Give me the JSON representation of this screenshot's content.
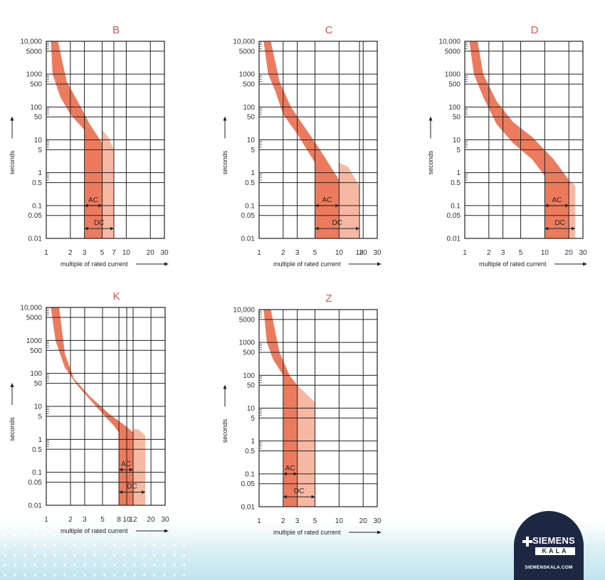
{
  "chart_data": [
    {
      "type": "area",
      "title": "B",
      "ylabel": "seconds",
      "xlabel": "multiple of rated current",
      "x_scale": "log",
      "y_scale": "log",
      "xlim": [
        1,
        30
      ],
      "ylim": [
        0.01,
        10000
      ],
      "x_ticks": [
        1,
        2,
        3,
        5,
        7,
        10,
        20,
        30
      ],
      "x_tick_labels": [
        "1",
        "2",
        "3",
        "5",
        "7",
        "10",
        "20",
        "30"
      ],
      "y_ticks": [
        0.01,
        0.05,
        0.1,
        0.5,
        1,
        5,
        10,
        50,
        100,
        500,
        1000,
        5000,
        10000
      ],
      "y_tick_labels": [
        "0.01",
        "0.05",
        "0.1",
        "0.5",
        "1",
        "5",
        "10",
        "50",
        "100",
        "500",
        "1000",
        "5000",
        "10,000"
      ],
      "inner_band": [
        [
          1.14,
          10000
        ],
        [
          1.2,
          1000
        ],
        [
          1.5,
          200
        ],
        [
          2.0,
          60
        ],
        [
          3.0,
          20
        ],
        [
          3.0,
          0.01
        ],
        [
          5.0,
          0.01
        ],
        [
          5.0,
          8
        ],
        [
          3.5,
          30
        ],
        [
          2.7,
          100
        ],
        [
          1.8,
          600
        ],
        [
          1.4,
          10000
        ]
      ],
      "outer_band": [
        [
          5.0,
          0.01
        ],
        [
          7.0,
          0.01
        ],
        [
          7.0,
          5
        ],
        [
          6.0,
          12
        ],
        [
          5.0,
          20
        ]
      ],
      "annotations": [
        {
          "label": "AC",
          "from": 3,
          "to": 5,
          "y": 0.1
        },
        {
          "label": "DC",
          "from": 3,
          "to": 7,
          "y": 0.02
        }
      ]
    },
    {
      "type": "area",
      "title": "C",
      "ylabel": "seconds",
      "xlabel": "multiple of rated current",
      "x_scale": "log",
      "y_scale": "log",
      "xlim": [
        1,
        30
      ],
      "ylim": [
        0.01,
        10000
      ],
      "x_ticks": [
        1,
        2,
        3,
        5,
        10,
        18,
        20,
        30
      ],
      "x_tick_labels": [
        "1",
        "2",
        "3",
        "5",
        "10",
        "18",
        "20",
        "30"
      ],
      "y_ticks": [
        0.01,
        0.05,
        0.1,
        0.5,
        1,
        5,
        10,
        50,
        100,
        500,
        1000,
        5000,
        10000
      ],
      "y_tick_labels": [
        "0.01",
        "0.05",
        "0.1",
        "0.5",
        "1",
        "5",
        "10",
        "50",
        "100",
        "500",
        "1000",
        "5000",
        "10,000"
      ],
      "inner_band": [
        [
          1.14,
          10000
        ],
        [
          1.3,
          1000
        ],
        [
          1.6,
          300
        ],
        [
          2.0,
          60
        ],
        [
          3.0,
          15
        ],
        [
          5.0,
          2
        ],
        [
          5.0,
          0.01
        ],
        [
          10.0,
          0.01
        ],
        [
          10.0,
          0.6
        ],
        [
          5.5,
          6
        ],
        [
          3.5,
          30
        ],
        [
          2.5,
          100
        ],
        [
          1.8,
          600
        ],
        [
          1.4,
          10000
        ]
      ],
      "outer_band": [
        [
          10.0,
          0.01
        ],
        [
          18.0,
          0.01
        ],
        [
          18.0,
          0.4
        ],
        [
          13.0,
          1.5
        ],
        [
          10.0,
          2
        ]
      ],
      "annotations": [
        {
          "label": "AC",
          "from": 5,
          "to": 10,
          "y": 0.1
        },
        {
          "label": "DC",
          "from": 5,
          "to": 18,
          "y": 0.02
        }
      ]
    },
    {
      "type": "area",
      "title": "D",
      "ylabel": "seconds",
      "xlabel": "multiple of rated current",
      "x_scale": "log",
      "y_scale": "log",
      "xlim": [
        1,
        30
      ],
      "ylim": [
        0.01,
        10000
      ],
      "x_ticks": [
        1,
        2,
        3,
        5,
        10,
        20,
        30
      ],
      "x_tick_labels": [
        "1",
        "2",
        "3",
        "5",
        "10",
        "20",
        "30"
      ],
      "y_ticks": [
        0.01,
        0.05,
        0.1,
        0.5,
        1,
        5,
        10,
        50,
        100,
        500,
        1000,
        5000,
        10000
      ],
      "y_tick_labels": [
        "0.01",
        "0.05",
        "0.1",
        "0.5",
        "1",
        "5",
        "10",
        "50",
        "100",
        "500",
        "1000",
        "5000",
        "10,000"
      ],
      "inner_band": [
        [
          1.14,
          10000
        ],
        [
          1.3,
          1000
        ],
        [
          1.7,
          200
        ],
        [
          2.5,
          30
        ],
        [
          4.0,
          8
        ],
        [
          7.0,
          2.5
        ],
        [
          10.0,
          0.8
        ],
        [
          10.0,
          0.01
        ],
        [
          20.0,
          0.01
        ],
        [
          20.0,
          0.6
        ],
        [
          13.0,
          2.5
        ],
        [
          7.0,
          12
        ],
        [
          4.0,
          35
        ],
        [
          2.5,
          150
        ],
        [
          1.7,
          1000
        ],
        [
          1.45,
          10000
        ]
      ],
      "outer_band": [
        [
          20.0,
          0.01
        ],
        [
          24.0,
          0.01
        ],
        [
          24.0,
          0.4
        ],
        [
          20.0,
          0.6
        ]
      ],
      "annotations": [
        {
          "label": "AC",
          "from": 10,
          "to": 20,
          "y": 0.1
        },
        {
          "label": "DC",
          "from": 10,
          "to": 24,
          "y": 0.02
        }
      ]
    },
    {
      "type": "area",
      "title": "K",
      "ylabel": "seconds",
      "xlabel": "multiple of rated current",
      "x_scale": "log",
      "y_scale": "log",
      "xlim": [
        1,
        30
      ],
      "ylim": [
        0.01,
        10000
      ],
      "x_ticks": [
        1,
        2,
        3,
        5,
        8,
        10,
        12,
        20,
        30
      ],
      "x_tick_labels": [
        "1",
        "2",
        "3",
        "5",
        "8",
        "10",
        "12",
        "20",
        "30"
      ],
      "y_ticks": [
        0.01,
        0.05,
        0.1,
        0.5,
        1,
        5,
        10,
        50,
        100,
        500,
        1000,
        5000,
        10000
      ],
      "y_tick_labels": [
        "0.01",
        "0.05",
        "0.1",
        "0.5",
        "1",
        "5",
        "10",
        "50",
        "100",
        "500",
        "1000",
        "5000",
        "10,000"
      ],
      "inner_band": [
        [
          1.14,
          10000
        ],
        [
          1.3,
          1000
        ],
        [
          1.7,
          150
        ],
        [
          2.5,
          40
        ],
        [
          4.5,
          8
        ],
        [
          7.0,
          2.5
        ],
        [
          8.0,
          1.6
        ],
        [
          8.0,
          0.01
        ],
        [
          12.0,
          0.01
        ],
        [
          12.0,
          1.6
        ],
        [
          10.0,
          2.4
        ],
        [
          6.0,
          6
        ],
        [
          3.5,
          20
        ],
        [
          2.2,
          70
        ],
        [
          1.7,
          400
        ],
        [
          1.45,
          10000
        ]
      ],
      "outer_band": [
        [
          12.0,
          0.01
        ],
        [
          17.0,
          0.01
        ],
        [
          17.0,
          1.3
        ],
        [
          14.0,
          2
        ],
        [
          12.0,
          2
        ]
      ],
      "annotations": [
        {
          "label": "AC",
          "from": 8,
          "to": 12,
          "y": 0.12
        },
        {
          "label": "DC",
          "from": 8,
          "to": 17,
          "y": 0.025
        }
      ]
    },
    {
      "type": "area",
      "title": "Z",
      "ylabel": "seconds",
      "xlabel": "multiple of rated current",
      "x_scale": "log",
      "y_scale": "log",
      "xlim": [
        1,
        30
      ],
      "ylim": [
        0.01,
        10000
      ],
      "x_ticks": [
        1,
        2,
        3,
        5,
        10,
        20,
        30
      ],
      "x_tick_labels": [
        "1",
        "2",
        "3",
        "5",
        "10",
        "20",
        "30"
      ],
      "y_ticks": [
        0.01,
        0.05,
        0.1,
        0.5,
        1,
        5,
        10,
        50,
        100,
        500,
        1000,
        5000,
        10000
      ],
      "y_tick_labels": [
        "0.01",
        "0.05",
        "0.1",
        "0.5",
        "1",
        "5",
        "10",
        "50",
        "100",
        "500",
        "1000",
        "5000",
        "10,000"
      ],
      "inner_band": [
        [
          1.14,
          10000
        ],
        [
          1.25,
          1000
        ],
        [
          1.5,
          300
        ],
        [
          2.0,
          100
        ],
        [
          2.0,
          0.01
        ],
        [
          3.0,
          0.01
        ],
        [
          3.0,
          50
        ],
        [
          2.4,
          100
        ],
        [
          1.8,
          500
        ],
        [
          1.4,
          10000
        ]
      ],
      "outer_band": [
        [
          3.0,
          0.01
        ],
        [
          5.0,
          0.01
        ],
        [
          5.0,
          15
        ],
        [
          3.0,
          50
        ]
      ],
      "annotations": [
        {
          "label": "AC",
          "from": 2,
          "to": 3,
          "y": 0.1
        },
        {
          "label": "DC",
          "from": 2,
          "to": 5,
          "y": 0.02
        }
      ]
    }
  ],
  "colors": {
    "title": "#d9534f",
    "inner_band": "#ec7b5e",
    "outer_band": "#f6b8a3",
    "grid": "#222222"
  },
  "logo": {
    "brand": "SIEMENS",
    "sub": "KALA",
    "url": "SIEMENSKALA.COM",
    "background": "#1d2742"
  }
}
